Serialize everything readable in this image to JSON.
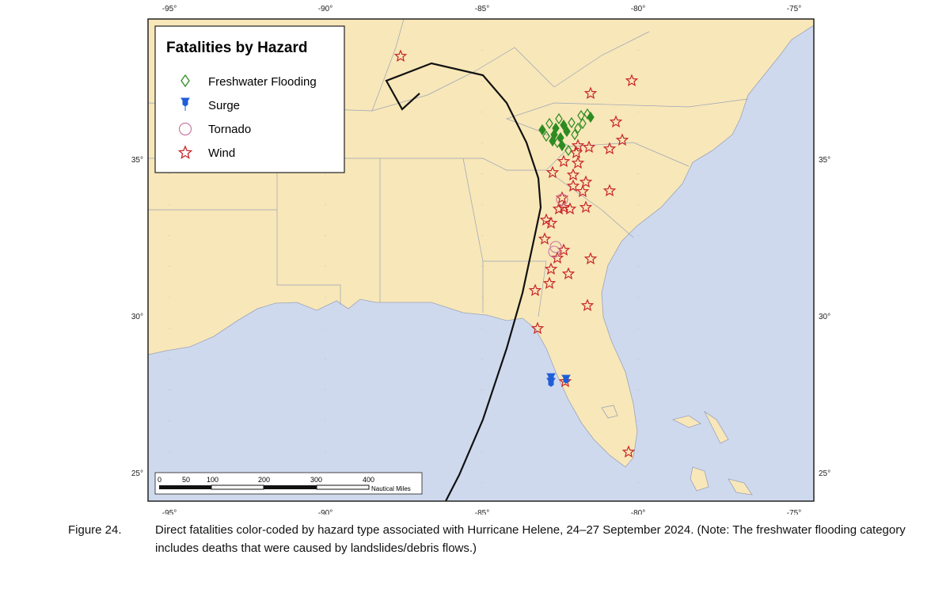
{
  "legend": {
    "title": "Fatalities by Hazard",
    "items": [
      "Freshwater Flooding",
      "Surge",
      "Tornado",
      "Wind"
    ]
  },
  "axes": {
    "longitudes": [
      "-95°",
      "-90°",
      "-85°",
      "-80°",
      "-75°"
    ],
    "latitudes": [
      "35°",
      "30°",
      "25°"
    ]
  },
  "scale_bar": {
    "ticks": [
      "0",
      "50",
      "100",
      "200",
      "300",
      "400"
    ],
    "unit": "Nautical Miles"
  },
  "caption": {
    "label": "Figure 24.",
    "text": "Direct fatalities color-coded by hazard type associated with Hurricane Helene, 24–27 September 2024.  (Note: The freshwater flooding category includes deaths that were caused by landslides/debris flows.)"
  }
}
